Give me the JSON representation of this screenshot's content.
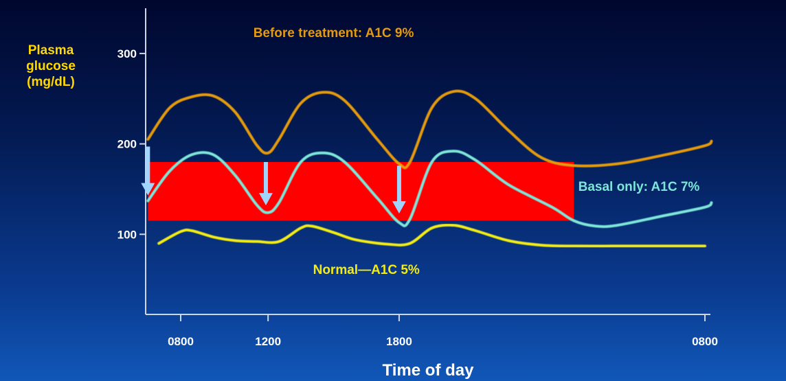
{
  "chart_data": {
    "type": "line",
    "xlabel": "Time of day",
    "ylabel": [
      "Plasma",
      "glucose",
      "(mg/dL)"
    ],
    "x_ticks": [
      {
        "hour": 8,
        "label": "0800"
      },
      {
        "hour": 12,
        "label": "1200"
      },
      {
        "hour": 18,
        "label": "1800"
      },
      {
        "hour": 32,
        "label": "0800"
      }
    ],
    "y_ticks": [
      100,
      200,
      300
    ],
    "ylim": [
      0,
      350
    ],
    "grid": false,
    "target_band": {
      "x_start": 6.5,
      "x_end": 26,
      "y_low": 115,
      "y_high": 180,
      "color": "#ff0000"
    },
    "series": [
      {
        "name": "Before treatment: A1C 9%",
        "color": "#e49a10",
        "points": [
          [
            6.5,
            205
          ],
          [
            7.5,
            240
          ],
          [
            8.5,
            252
          ],
          [
            9.5,
            253
          ],
          [
            10.5,
            235
          ],
          [
            11.5,
            198
          ],
          [
            12,
            190
          ],
          [
            12.5,
            205
          ],
          [
            13.5,
            245
          ],
          [
            14.5,
            257
          ],
          [
            15.5,
            248
          ],
          [
            17,
            205
          ],
          [
            18,
            178
          ],
          [
            18.5,
            180
          ],
          [
            19.5,
            240
          ],
          [
            20.5,
            258
          ],
          [
            21.5,
            250
          ],
          [
            23,
            215
          ],
          [
            24.5,
            185
          ],
          [
            26,
            176
          ],
          [
            28,
            178
          ],
          [
            30,
            187
          ],
          [
            32,
            198
          ],
          [
            32.3,
            203
          ]
        ]
      },
      {
        "name": "Basal only: A1C 7%",
        "color": "#7de6d8",
        "points": [
          [
            6.5,
            137
          ],
          [
            7.5,
            170
          ],
          [
            8.5,
            188
          ],
          [
            9.5,
            188
          ],
          [
            10.5,
            165
          ],
          [
            11.5,
            132
          ],
          [
            12,
            124
          ],
          [
            12.5,
            135
          ],
          [
            13.5,
            180
          ],
          [
            14.5,
            190
          ],
          [
            15.5,
            180
          ],
          [
            17,
            140
          ],
          [
            18,
            113
          ],
          [
            18.5,
            117
          ],
          [
            19.5,
            180
          ],
          [
            20.5,
            192
          ],
          [
            21.5,
            182
          ],
          [
            23,
            155
          ],
          [
            25,
            130
          ],
          [
            26,
            115
          ],
          [
            27,
            109
          ],
          [
            28,
            110
          ],
          [
            30,
            120
          ],
          [
            32,
            130
          ],
          [
            32.3,
            135
          ]
        ]
      },
      {
        "name": "Normal—A1C 5%",
        "color": "#f2ec14",
        "points": [
          [
            7,
            90
          ],
          [
            8,
            103
          ],
          [
            8.5,
            104
          ],
          [
            9.5,
            97
          ],
          [
            10.5,
            93
          ],
          [
            11.5,
            92
          ],
          [
            12.5,
            92
          ],
          [
            13.5,
            107
          ],
          [
            14,
            109
          ],
          [
            15,
            102
          ],
          [
            16,
            94
          ],
          [
            17.5,
            89
          ],
          [
            18.5,
            90
          ],
          [
            19.5,
            107
          ],
          [
            20.5,
            110
          ],
          [
            21.5,
            104
          ],
          [
            23,
            93
          ],
          [
            24.5,
            88
          ],
          [
            26,
            87
          ],
          [
            28,
            87
          ],
          [
            30,
            87
          ],
          [
            32,
            87
          ]
        ]
      }
    ],
    "annotations": [
      {
        "text": "Before treatment: A1C 9%",
        "x": 15,
        "y": 318,
        "anchor": "middle",
        "color": "#e49a10"
      },
      {
        "text": "Basal only: A1C 7%",
        "x": 26.2,
        "y": 148,
        "anchor": "start",
        "color": "#7de6d8"
      },
      {
        "text": "Normal—A1C 5%",
        "x": 16.5,
        "y": 56,
        "anchor": "middle",
        "color": "#f2ec14"
      }
    ],
    "arrows": [
      {
        "x": 6.5,
        "y_from": 197,
        "y_to": 143,
        "color": "#9fd5ff"
      },
      {
        "x": 11.9,
        "y_from": 180,
        "y_to": 132,
        "color": "#9fd5ff"
      },
      {
        "x": 18,
        "y_from": 176,
        "y_to": 123,
        "color": "#9fd5ff"
      }
    ]
  }
}
